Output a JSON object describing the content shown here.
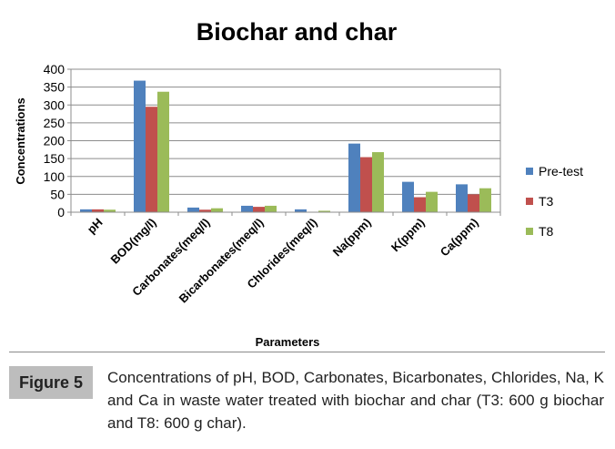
{
  "chart_data": {
    "type": "bar",
    "title": "Biochar and char",
    "xlabel": "Parameters",
    "ylabel": "Concentrations",
    "ylim": [
      0,
      400
    ],
    "yticks": [
      0,
      50,
      100,
      150,
      200,
      250,
      300,
      350,
      400
    ],
    "grid": true,
    "legend_position": "right",
    "categories": [
      "pH",
      "BOD(mg/l)",
      "Carbonates(meq/l)",
      "Bicarbonates(meq/l)",
      "Chlorides(meq/l)",
      "Na(ppm)",
      "K(ppm)",
      "Ca(ppm)"
    ],
    "series": [
      {
        "name": "Pre-test",
        "color": "#4f81bd",
        "values": [
          8,
          368,
          13,
          18,
          8,
          192,
          85,
          78
        ]
      },
      {
        "name": "T3",
        "color": "#c0504d",
        "values": [
          8,
          295,
          7,
          15,
          1,
          154,
          42,
          50
        ]
      },
      {
        "name": "T8",
        "color": "#9bbb59",
        "values": [
          7,
          337,
          11,
          18,
          4,
          168,
          57,
          67
        ]
      }
    ]
  },
  "figure": {
    "label": "Figure 5",
    "caption": "Concentrations of pH, BOD, Carbonates, Bicarbonates, Chlorides, Na, K and Ca in waste water treated with biochar and char (T3: 600 g biochar and T8: 600 g char)."
  }
}
